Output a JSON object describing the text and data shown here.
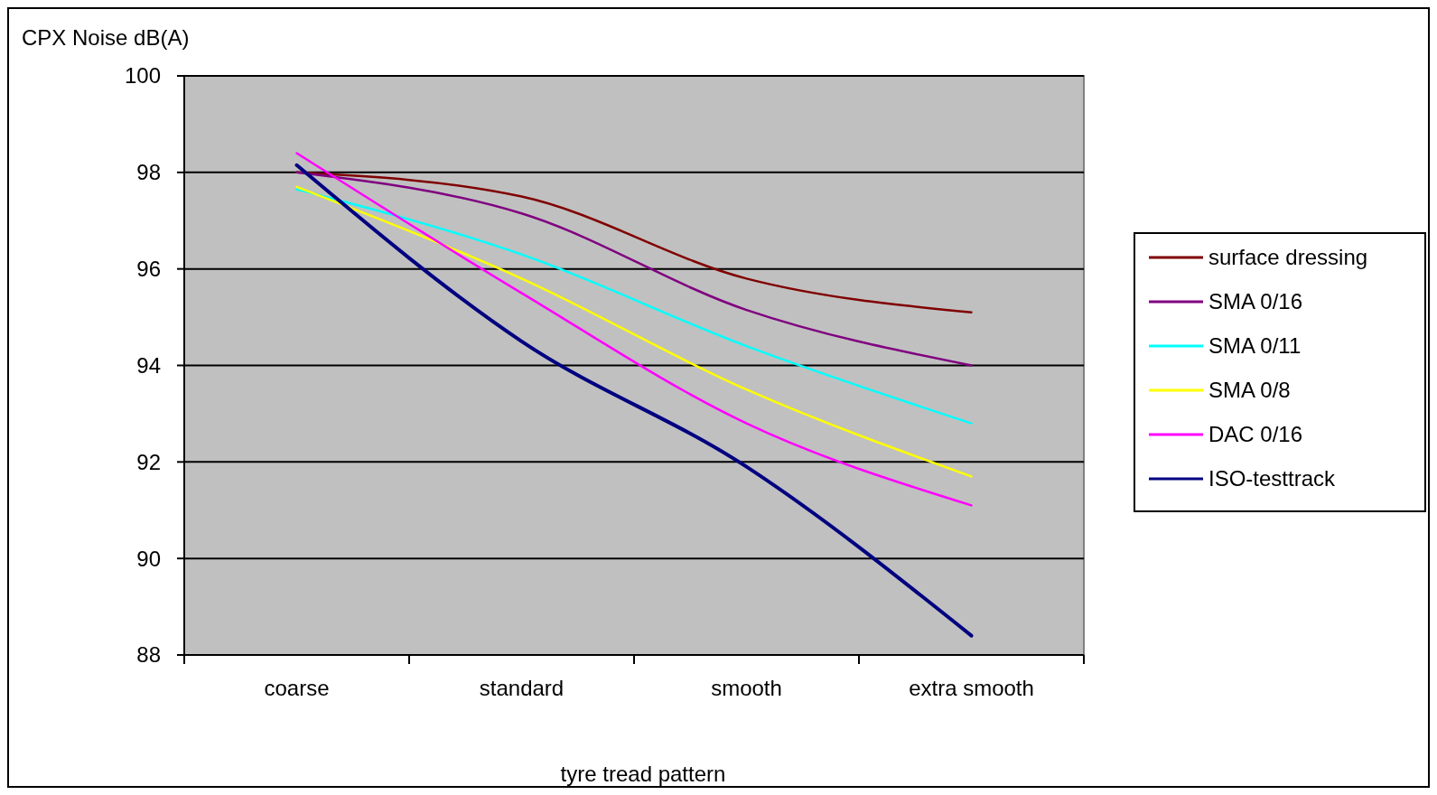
{
  "chart_data": {
    "type": "line",
    "xlabel": "tyre tread pattern",
    "ylabel": "CPX Noise dB(A)",
    "categories": [
      "coarse",
      "standard",
      "smooth",
      "extra smooth"
    ],
    "ylim": [
      88,
      100
    ],
    "yticks": [
      88,
      90,
      92,
      94,
      96,
      98,
      100
    ],
    "grid": "y",
    "legend": "right",
    "series": [
      {
        "name": "surface dressing",
        "color": "#800000",
        "values": [
          98.0,
          97.5,
          95.8,
          95.1
        ]
      },
      {
        "name": "SMA 0/16",
        "color": "#800080",
        "values": [
          98.0,
          97.15,
          95.15,
          94.0
        ]
      },
      {
        "name": "SMA 0/11",
        "color": "#00ffff",
        "values": [
          97.65,
          96.3,
          94.4,
          92.8
        ]
      },
      {
        "name": "SMA 0/8",
        "color": "#ffff00",
        "values": [
          97.7,
          95.8,
          93.5,
          91.7
        ]
      },
      {
        "name": "DAC 0/16",
        "color": "#ff00ff",
        "values": [
          98.4,
          95.5,
          92.8,
          91.1
        ]
      },
      {
        "name": "ISO-testtrack",
        "color": "#000080",
        "values": [
          98.15,
          94.5,
          91.9,
          88.4
        ]
      }
    ]
  }
}
